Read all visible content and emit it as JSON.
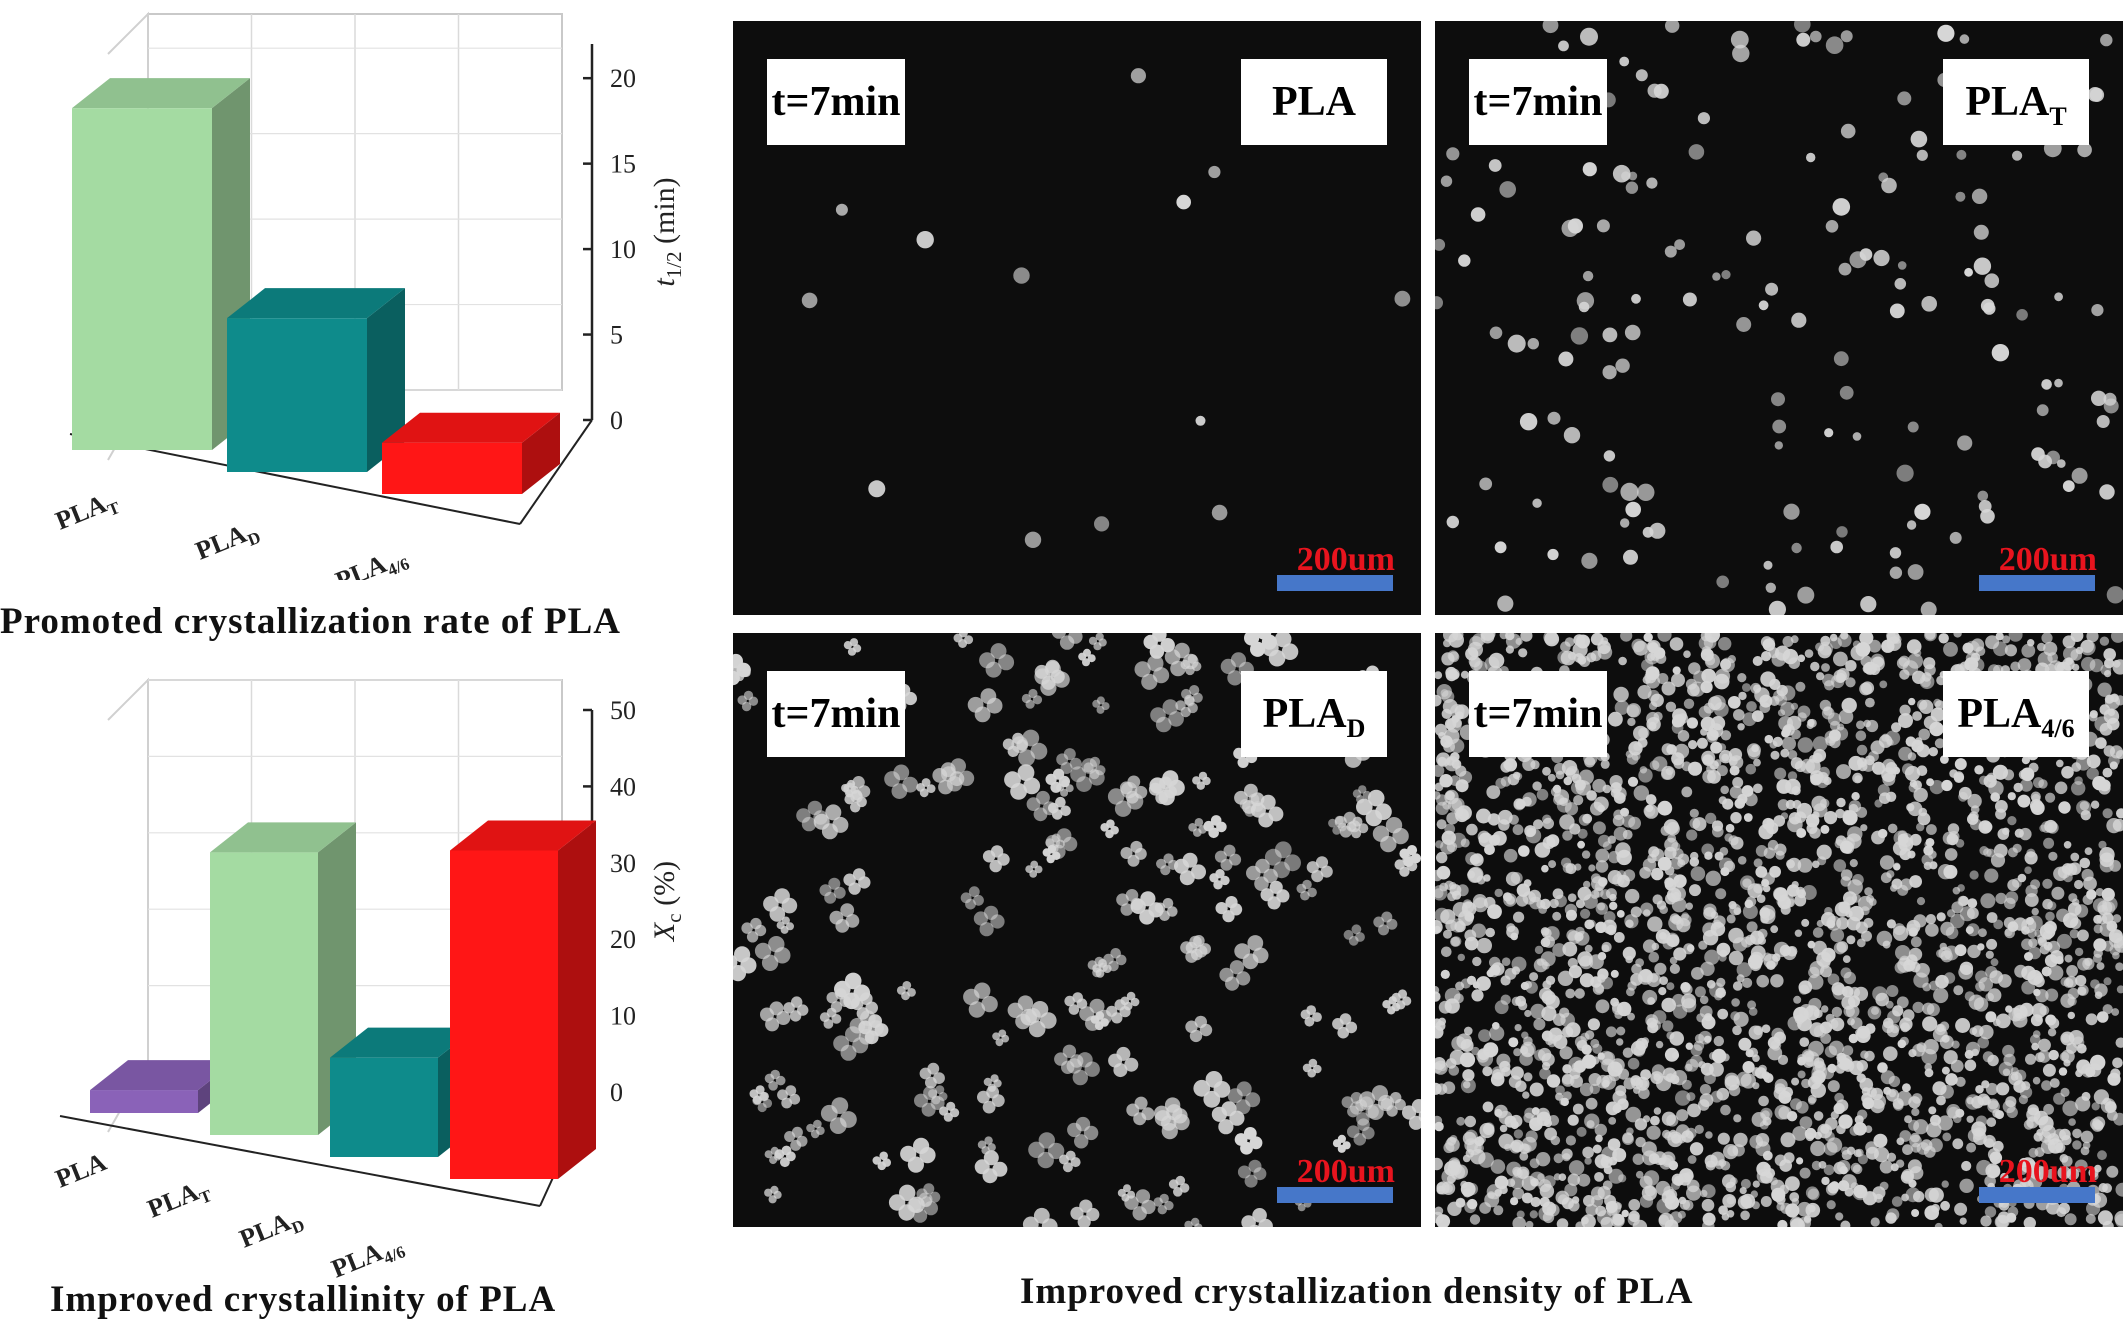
{
  "chart_data": [
    {
      "type": "bar",
      "categories": [
        "PLA_T",
        "PLA_D",
        "PLA_4/6"
      ],
      "category_labels": [
        {
          "main": "PLA",
          "sub": "T"
        },
        {
          "main": "PLA",
          "sub": "D"
        },
        {
          "main": "PLA",
          "sub": "4/6"
        }
      ],
      "values": [
        20.0,
        9.0,
        3.0
      ],
      "ylabel_main": "t",
      "ylabel_sub": "1/2",
      "ylabel_rest": " (min)",
      "ylim": [
        0,
        22
      ],
      "yticks": [
        0,
        5,
        10,
        15,
        20
      ],
      "colors": [
        "#a4dba2",
        "#0e8b8b",
        "#ff1616"
      ],
      "caption": "Promoted crystallization rate of PLA"
    },
    {
      "type": "bar",
      "categories": [
        "PLA",
        "PLA_T",
        "PLA_D",
        "PLA_4/6"
      ],
      "category_labels": [
        {
          "main": "PLA",
          "sub": ""
        },
        {
          "main": "PLA",
          "sub": "T"
        },
        {
          "main": "PLA",
          "sub": "D"
        },
        {
          "main": "PLA",
          "sub": "4/6"
        }
      ],
      "values": [
        3.0,
        37.0,
        13.0,
        43.0
      ],
      "ylabel_main": "X",
      "ylabel_sub": "c",
      "ylabel_rest": " (%)",
      "ylim": [
        0,
        50
      ],
      "yticks": [
        0,
        10,
        20,
        30,
        40,
        50
      ],
      "colors": [
        "#8a62b8",
        "#a4dba2",
        "#0e8b8b",
        "#ff1616"
      ],
      "caption": "Improved crystallinity of PLA"
    }
  ],
  "micrographs": {
    "caption": "Improved crystallization density of PLA",
    "panels": [
      {
        "time": "t=7min",
        "sample_main": "PLA",
        "sample_sub": "",
        "scale": "200um",
        "density": "very-sparse"
      },
      {
        "time": "t=7min",
        "sample_main": "PLA",
        "sample_sub": "T",
        "scale": "200um",
        "density": "sparse"
      },
      {
        "time": "t=7min",
        "sample_main": "PLA",
        "sample_sub": "D",
        "scale": "200um",
        "density": "medium"
      },
      {
        "time": "t=7min",
        "sample_main": "PLA",
        "sample_sub": "4/6",
        "scale": "200um",
        "density": "dense"
      }
    ]
  }
}
